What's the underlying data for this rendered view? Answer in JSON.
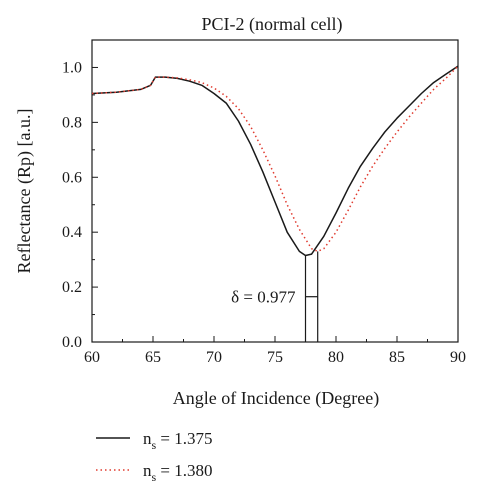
{
  "chart_data": {
    "type": "line",
    "title": "PCI-2 (normal cell)",
    "xlabel": "Angle of Incidence (Degree)",
    "ylabel": "Reflectance (Rp) [a.u.]",
    "xlim": [
      60,
      90
    ],
    "ylim": [
      0,
      1.1
    ],
    "xticks": [
      60,
      65,
      70,
      75,
      80,
      85,
      90
    ],
    "yticks": [
      0.0,
      0.2,
      0.4,
      0.6,
      0.8,
      1.0
    ],
    "xtick_labels": [
      "60",
      "65",
      "70",
      "75",
      "80",
      "85",
      "90"
    ],
    "ytick_labels": [
      "0.0",
      "0.2",
      "0.4",
      "0.6",
      "0.8",
      "1.0"
    ],
    "grid": false,
    "legend_position": "bottom-left, below plot",
    "annotation": {
      "symbol": "δ",
      "text": " = 0.977",
      "x_left": 77.5,
      "x_right": 78.5,
      "y": 0.165
    },
    "series": [
      {
        "name_main": "n",
        "name_sub": "s",
        "name_value": " = 1.375",
        "color": "#1a1a1a",
        "style": "solid",
        "x": [
          60,
          62,
          64,
          64.8,
          65.2,
          65.6,
          66,
          67,
          68,
          69,
          70,
          71,
          72,
          73,
          74,
          75,
          76,
          77,
          77.5,
          78,
          79,
          80,
          81,
          82,
          83,
          84,
          85,
          86,
          87,
          88,
          89,
          90
        ],
        "y": [
          0.905,
          0.91,
          0.92,
          0.935,
          0.965,
          0.965,
          0.965,
          0.96,
          0.95,
          0.935,
          0.905,
          0.87,
          0.805,
          0.72,
          0.62,
          0.51,
          0.4,
          0.33,
          0.315,
          0.32,
          0.385,
          0.47,
          0.56,
          0.64,
          0.705,
          0.765,
          0.815,
          0.86,
          0.905,
          0.945,
          0.975,
          1.005
        ]
      },
      {
        "name_main": "n",
        "name_sub": "s",
        "name_value": " = 1.380",
        "color": "#e03a2e",
        "style": "dotted",
        "x": [
          60,
          62,
          64,
          64.8,
          65.2,
          65.6,
          66,
          67,
          68,
          69,
          70,
          71,
          72,
          73,
          74,
          75,
          76,
          77,
          78,
          78.5,
          79,
          80,
          81,
          82,
          83,
          84,
          85,
          86,
          87,
          88,
          89,
          90
        ],
        "y": [
          0.905,
          0.91,
          0.92,
          0.935,
          0.965,
          0.965,
          0.965,
          0.962,
          0.955,
          0.945,
          0.925,
          0.895,
          0.85,
          0.785,
          0.7,
          0.605,
          0.5,
          0.41,
          0.34,
          0.33,
          0.34,
          0.4,
          0.48,
          0.565,
          0.64,
          0.705,
          0.765,
          0.82,
          0.87,
          0.92,
          0.96,
          1.005
        ]
      }
    ]
  }
}
